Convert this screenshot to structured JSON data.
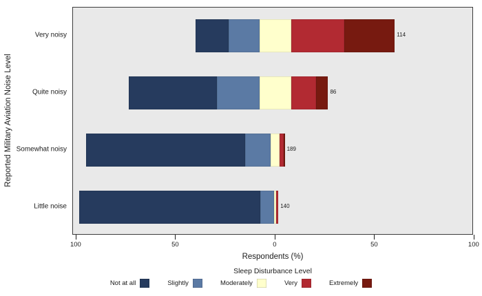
{
  "chart_data": {
    "type": "bar",
    "variant": "diverging-stacked-horizontal",
    "xlabel": "Respondents (%)",
    "ylabel": "Reported Military Aviation Noise Level",
    "legend_title": "Sleep Disturbance Level",
    "legend_position": "bottom",
    "plot_background": "#e9e9e9",
    "x_ticks": [
      -100,
      -50,
      0,
      50,
      100
    ],
    "x_tick_labels": [
      "100",
      "50",
      "0",
      "50",
      "100"
    ],
    "xlim": [
      -101.7,
      99.7
    ],
    "grid": "off",
    "categories": [
      "Very noisy",
      "Quite noisy",
      "Somewhat noisy",
      "Little noise"
    ],
    "counts": [
      "114",
      "86",
      "189",
      "140"
    ],
    "center_rule": "bars centered on midpoint of Moderately segment",
    "series": [
      {
        "name": "Not at all",
        "color": "#263b5e",
        "values": [
          16.5,
          44.0,
          80.0,
          91.0
        ]
      },
      {
        "name": "Slightly",
        "color": "#5b7aa4",
        "values": [
          15.5,
          21.5,
          13.0,
          7.0
        ]
      },
      {
        "name": "Moderately",
        "color": "#ffffcc",
        "values": [
          16.0,
          16.0,
          4.5,
          1.0
        ]
      },
      {
        "name": "Very",
        "color": "#b22a32",
        "values": [
          26.5,
          12.5,
          2.0,
          1.0
        ]
      },
      {
        "name": "Extremely",
        "color": "#771a10",
        "values": [
          25.5,
          6.0,
          0.5,
          0.0
        ]
      }
    ]
  }
}
